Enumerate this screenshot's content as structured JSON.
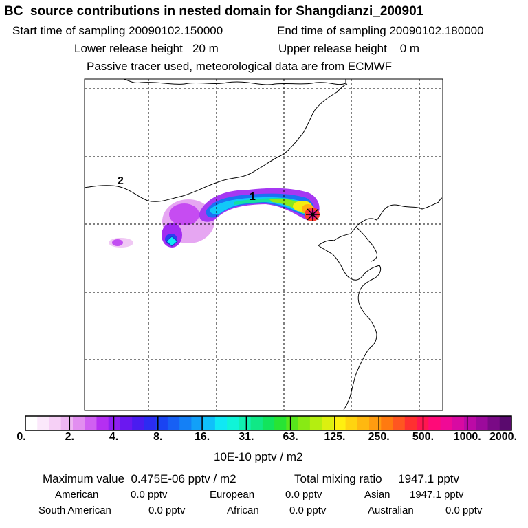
{
  "header": {
    "title": "BC  source contributions in nested domain for Shangdianzi_200901",
    "start_label": "Start time of sampling 20090102.150000",
    "end_label": "End time of sampling 20090102.180000",
    "lower_label": "Lower release height   20 m",
    "upper_label": "Upper release height    0 m",
    "info_line": "Passive tracer used, meteorological data are from ECMWF"
  },
  "map": {
    "region_labels": [
      "1",
      "2"
    ],
    "receptor_marker": "receptor-star-icon"
  },
  "colorbar": {
    "tick_labels": [
      "0.",
      "2.",
      "4.",
      "8.",
      "16.",
      "31.",
      "63.",
      "125.",
      "250.",
      "500.",
      "1000.",
      "2000."
    ],
    "colors": [
      "#ffffff",
      "#fbe8fb",
      "#f6d0f6",
      "#eeb6f2",
      "#e28ef0",
      "#d060f2",
      "#b52ff2",
      "#8f1ff2",
      "#6b18f0",
      "#4a1cf0",
      "#2c2cf2",
      "#1a44f2",
      "#1760f4",
      "#1480f6",
      "#12a0f8",
      "#10c0fa",
      "#10e8f4",
      "#10f4d8",
      "#10f0b0",
      "#10e886",
      "#12e45c",
      "#28e434",
      "#58e61c",
      "#88ea14",
      "#b4ee10",
      "#dcf010",
      "#fff010",
      "#ffd410",
      "#ffb810",
      "#ff9c10",
      "#ff7a10",
      "#ff5620",
      "#ff3030",
      "#ff1650",
      "#ff0a78",
      "#f00a96",
      "#d80aa2",
      "#bc0aa6",
      "#9c0a9c",
      "#7a0a86",
      "#5a0a6e"
    ],
    "units": "10E-10 pptv / m2"
  },
  "summary": {
    "max_value": "Maximum value  0.475E-06 pptv / m2",
    "total_mixing": "Total mixing ratio     1947.1 pptv",
    "rows": [
      [
        {
          "label": "American",
          "value": "0.0 pptv"
        },
        {
          "label": "European",
          "value": "0.0 pptv"
        },
        {
          "label": "Asian",
          "value": "1947.1 pptv"
        }
      ],
      [
        {
          "label": "South American",
          "value": "0.0 pptv"
        },
        {
          "label": "African",
          "value": "0.0 pptv"
        },
        {
          "label": "Australian",
          "value": "0.0 pptv"
        }
      ]
    ]
  }
}
